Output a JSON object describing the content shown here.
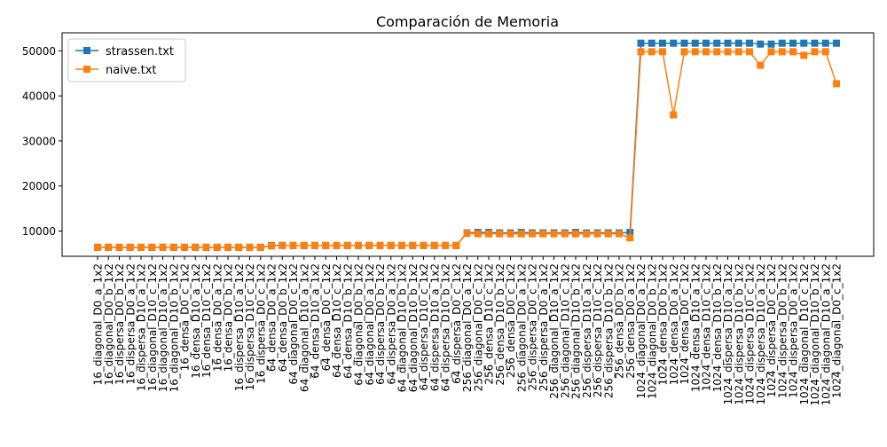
{
  "chart_data": {
    "type": "line",
    "title": "Comparación de Memoria",
    "xlabel": "",
    "ylabel": "",
    "ylim": [
      4400,
      54000
    ],
    "yticks": [
      10000,
      20000,
      30000,
      40000,
      50000
    ],
    "ytick_labels": [
      "10000",
      "20000",
      "30000",
      "40000",
      "50000"
    ],
    "grid": false,
    "legend_position": "upper-left",
    "categories": [
      "16_diagonal_D0_a_1x2",
      "16_diagonal_D0_b_1x2",
      "16_dispersa_D0_b_1x2",
      "16_dispersa_D0_a_1x2",
      "16_dispersa_D10_a_1x2",
      "16_diagonal_D10_c_1x2",
      "16_diagonal_D10_a_1x2",
      "16_diagonal_D10_b_1x2",
      "16_densa_D0_c_1x2",
      "16_densa_D10_a_1x2",
      "16_densa_D10_c_1x2",
      "16_densa_D0_a_1x2",
      "16_densa_D0_b_1x2",
      "16_dispersa_D10_a_1x2",
      "16_dispersa_D10_c_1x2",
      "16_dispersa_D0_c_1x2",
      "64_densa_D0_a_1x2",
      "64_densa_D0_b_1x2",
      "64_diagonal_D0_c_1x2",
      "64_diagonal_D10_a_1x2",
      "64_densa_D10_a_1x2",
      "64_densa_D0_c_1x2",
      "64_densa_D10_c_1x2",
      "64_densa_D10_b_1x2",
      "64_diagonal_D0_b_1x2",
      "64_diagonal_D0_a_1x2",
      "64_dispersa_D0_b_1x2",
      "64_dispersa_D0_a_1x2",
      "64_diagonal_D10_b_1x2",
      "64_diagonal_D10_b_1x2",
      "64_dispersa_D10_c_1x2",
      "64_dispersa_D10_a_1x2",
      "64_dispersa_D10_b_1x2",
      "64_dispersa_D0_c_1x2",
      "256_diagonal_D0_a_1x2",
      "256_diagonal_D0_c_1x2",
      "256_densa_D10_c_1x2",
      "256_densa_D10_b_1x2",
      "256_densa_D0_c_1x2",
      "256_diagonal_D0_a_1x2",
      "256_dispersa_D0_c_1x2",
      "256_dispersa_D0_a_1x2",
      "256_diagonal_D10_a_1x2",
      "256_diagonal_D10_c_1x2",
      "256_diagonal_D10_b_1x2",
      "256_dispersa_D10_a_1x2",
      "256_dispersa_D10_c_1x2",
      "256_dispersa_D10_b_1x2",
      "256_densa_D0_b_1x2",
      "256_densa_D0_a_1x2",
      "1024_diagonal_D0_a_1x2",
      "1024_diagonal_D0_b_1x2",
      "1024_densa_D0_b_1x2",
      "1024_densa_D0_a_1x2",
      "1024_densa_D0_c_1x2",
      "1024_densa_D10_a_1x2",
      "1024_densa_D10_c_1x2",
      "1024_densa_D10_b_1x2",
      "1024_dispersa_D10_a_1x2",
      "1024_dispersa_D10_b_1x2",
      "1024_dispersa_D10_c_1x2",
      "1024_dispersa_D10_a_1x2",
      "1024_dispersa_D0_c_1x2",
      "1024_dispersa_D0_b_1x2",
      "1024_dispersa_D0_a_1x2",
      "1024_diagonal_D10_c_1x2",
      "1024_diagonal_D10_b_1x2",
      "1024_diagonal_D10_a_1x2",
      "1024_diagonal_D0_c_1x2"
    ],
    "series": [
      {
        "name": "strassen.txt",
        "color": "#1f77b4",
        "marker": "square",
        "values": [
          6400,
          6400,
          6400,
          6400,
          6400,
          6400,
          6400,
          6400,
          6400,
          6400,
          6400,
          6400,
          6400,
          6400,
          6400,
          6400,
          6800,
          6800,
          6800,
          6800,
          6800,
          6800,
          6800,
          6800,
          6800,
          6800,
          6800,
          6800,
          6800,
          6800,
          6800,
          6800,
          6800,
          6800,
          9600,
          9700,
          9700,
          9600,
          9600,
          9700,
          9600,
          9600,
          9600,
          9600,
          9700,
          9600,
          9600,
          9600,
          9600,
          9700,
          51700,
          51700,
          51700,
          51700,
          51700,
          51700,
          51700,
          51700,
          51700,
          51700,
          51700,
          51500,
          51500,
          51700,
          51700,
          51700,
          51700,
          51700,
          51700
        ]
      },
      {
        "name": "naive.txt",
        "color": "#ff7f0e",
        "marker": "square",
        "values": [
          6400,
          6400,
          6400,
          6400,
          6400,
          6400,
          6400,
          6400,
          6400,
          6400,
          6400,
          6400,
          6400,
          6400,
          6400,
          6400,
          6700,
          6800,
          6800,
          6800,
          6800,
          6800,
          6800,
          6800,
          6800,
          6800,
          6800,
          6800,
          6800,
          6800,
          6800,
          6800,
          6800,
          6800,
          9500,
          9400,
          9400,
          9400,
          9400,
          9400,
          9400,
          9400,
          9400,
          9400,
          9400,
          9400,
          9400,
          9400,
          9400,
          8500,
          49800,
          49800,
          49800,
          35800,
          49800,
          49800,
          49800,
          49800,
          49800,
          49800,
          49800,
          46800,
          49800,
          49800,
          49800,
          49000,
          49800,
          49800,
          42700
        ]
      }
    ]
  }
}
